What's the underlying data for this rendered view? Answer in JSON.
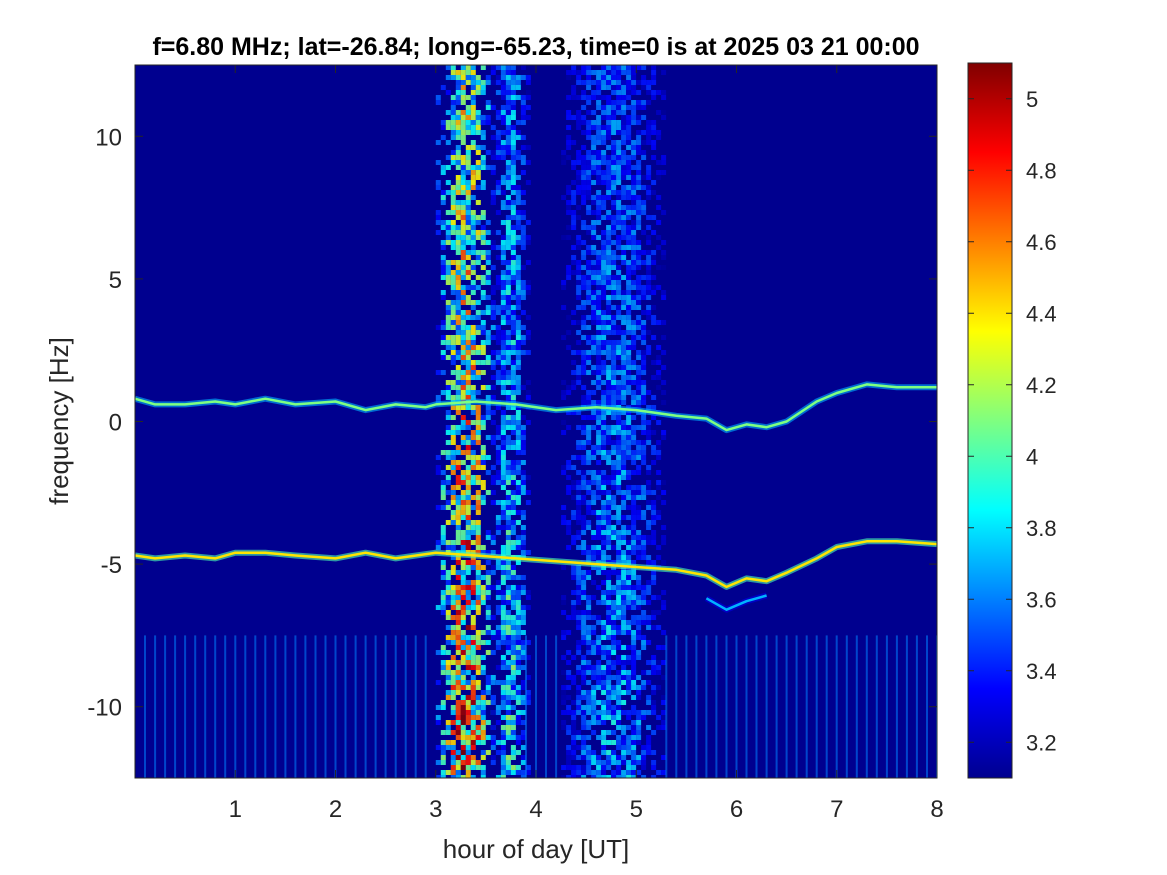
{
  "chart_data": {
    "type": "heatmap",
    "title": "f=6.80 MHz;  lat=-26.84; long=-65.23, time=0 is at 2025 03 21 00:00",
    "xlabel": "hour of day [UT]",
    "ylabel": "frequency [Hz]",
    "xlim": [
      0,
      8
    ],
    "ylim": [
      -12.5,
      12.5
    ],
    "x_ticks": [
      1,
      2,
      3,
      4,
      5,
      6,
      7,
      8
    ],
    "x_tick_labels": [
      "1",
      "2",
      "3",
      "4",
      "5",
      "6",
      "7",
      "8"
    ],
    "y_ticks": [
      10,
      5,
      0,
      -5,
      -10
    ],
    "y_tick_labels": [
      "10",
      "5",
      "0",
      "-5",
      "-10"
    ],
    "colormap": "jet",
    "colorbar": {
      "clim": [
        3.1,
        5.1
      ],
      "ticks": [
        5,
        4.8,
        4.6,
        4.4,
        4.2,
        4,
        3.8,
        3.6,
        3.4,
        3.2
      ],
      "tick_labels": [
        "5",
        "4.8",
        "4.6",
        "4.4",
        "4.2",
        "4",
        "3.8",
        "3.6",
        "3.4",
        "3.2"
      ]
    },
    "background_value": 3.15,
    "broadband_bands": [
      {
        "x_start": 3.0,
        "x_end": 3.55,
        "peak_value": 4.6
      },
      {
        "x_start": 3.55,
        "x_end": 3.9,
        "peak_value": 3.9
      },
      {
        "x_start": 4.25,
        "x_end": 5.25,
        "peak_value": 3.7
      }
    ],
    "traces": [
      {
        "x": [
          0,
          0.2,
          0.5,
          0.8,
          1.0,
          1.3,
          1.6,
          2.0,
          2.3,
          2.6,
          2.9,
          3.0,
          3.4,
          3.8,
          4.2,
          4.6,
          5.0,
          5.4,
          5.7,
          5.9,
          6.1,
          6.3,
          6.5,
          6.8,
          7.0,
          7.3,
          7.6,
          8.0
        ],
        "y": [
          0.8,
          0.6,
          0.6,
          0.7,
          0.6,
          0.8,
          0.6,
          0.7,
          0.4,
          0.6,
          0.5,
          0.6,
          0.7,
          0.6,
          0.4,
          0.5,
          0.4,
          0.2,
          0.1,
          -0.3,
          -0.1,
          -0.2,
          0.0,
          0.7,
          1.0,
          1.3,
          1.2,
          1.2
        ],
        "value": 4.1
      },
      {
        "x": [
          0,
          0.2,
          0.5,
          0.8,
          1.0,
          1.3,
          1.6,
          2.0,
          2.3,
          2.6,
          3.0,
          3.4,
          3.8,
          4.2,
          4.6,
          5.0,
          5.4,
          5.7,
          5.9,
          6.1,
          6.3,
          6.5,
          6.8,
          7.0,
          7.3,
          7.6,
          8.0
        ],
        "y": [
          -4.7,
          -4.8,
          -4.7,
          -4.8,
          -4.6,
          -4.6,
          -4.7,
          -4.8,
          -4.6,
          -4.8,
          -4.6,
          -4.7,
          -4.8,
          -4.9,
          -5.0,
          -5.1,
          -5.2,
          -5.4,
          -5.8,
          -5.5,
          -5.6,
          -5.3,
          -4.8,
          -4.4,
          -4.2,
          -4.2,
          -4.3
        ],
        "value": 4.4
      },
      {
        "x": [
          5.7,
          5.9,
          6.1,
          6.3
        ],
        "y": [
          -6.2,
          -6.6,
          -6.3,
          -6.1
        ],
        "value": 3.7
      }
    ],
    "low_freq_comb": {
      "y_start": -12.5,
      "y_end": -7.5,
      "period_hours": 0.1,
      "value": 3.6
    }
  }
}
